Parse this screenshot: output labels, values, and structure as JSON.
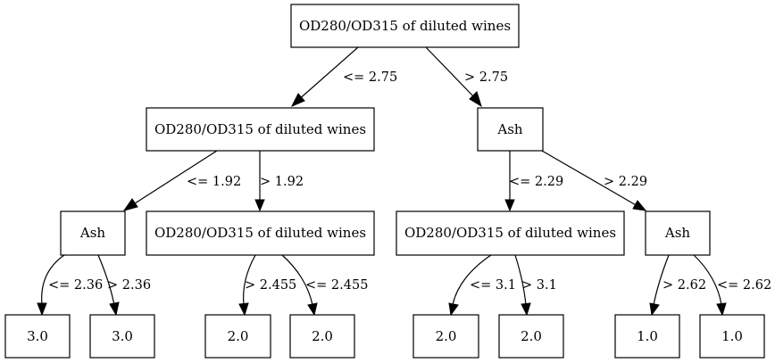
{
  "tree": {
    "nodes": {
      "root": "OD280/OD315 of diluted wines",
      "n_left": "OD280/OD315 of diluted wines",
      "n_right": "Ash",
      "n_ll": "Ash",
      "n_lr": "OD280/OD315 of diluted wines",
      "n_rl": "OD280/OD315 of diluted wines",
      "n_rr": "Ash",
      "leaf_1": "3.0",
      "leaf_2": "3.0",
      "leaf_3": "2.0",
      "leaf_4": "2.0",
      "leaf_5": "2.0",
      "leaf_6": "2.0",
      "leaf_7": "1.0",
      "leaf_8": "1.0"
    },
    "edges": {
      "root_left": "<= 2.75",
      "root_right": "> 2.75",
      "left_ll": "<= 1.92",
      "left_lr": "> 1.92",
      "right_rl": "<= 2.29",
      "right_rr": "> 2.29",
      "ll_leaf1": "<= 2.36",
      "ll_leaf2": "> 2.36",
      "lr_leaf3": "> 2.455",
      "lr_leaf4": "<= 2.455",
      "rl_leaf5": "<= 3.1",
      "rl_leaf6": "> 3.1",
      "rr_leaf7": "> 2.62",
      "rr_leaf8": "<= 2.62"
    }
  }
}
